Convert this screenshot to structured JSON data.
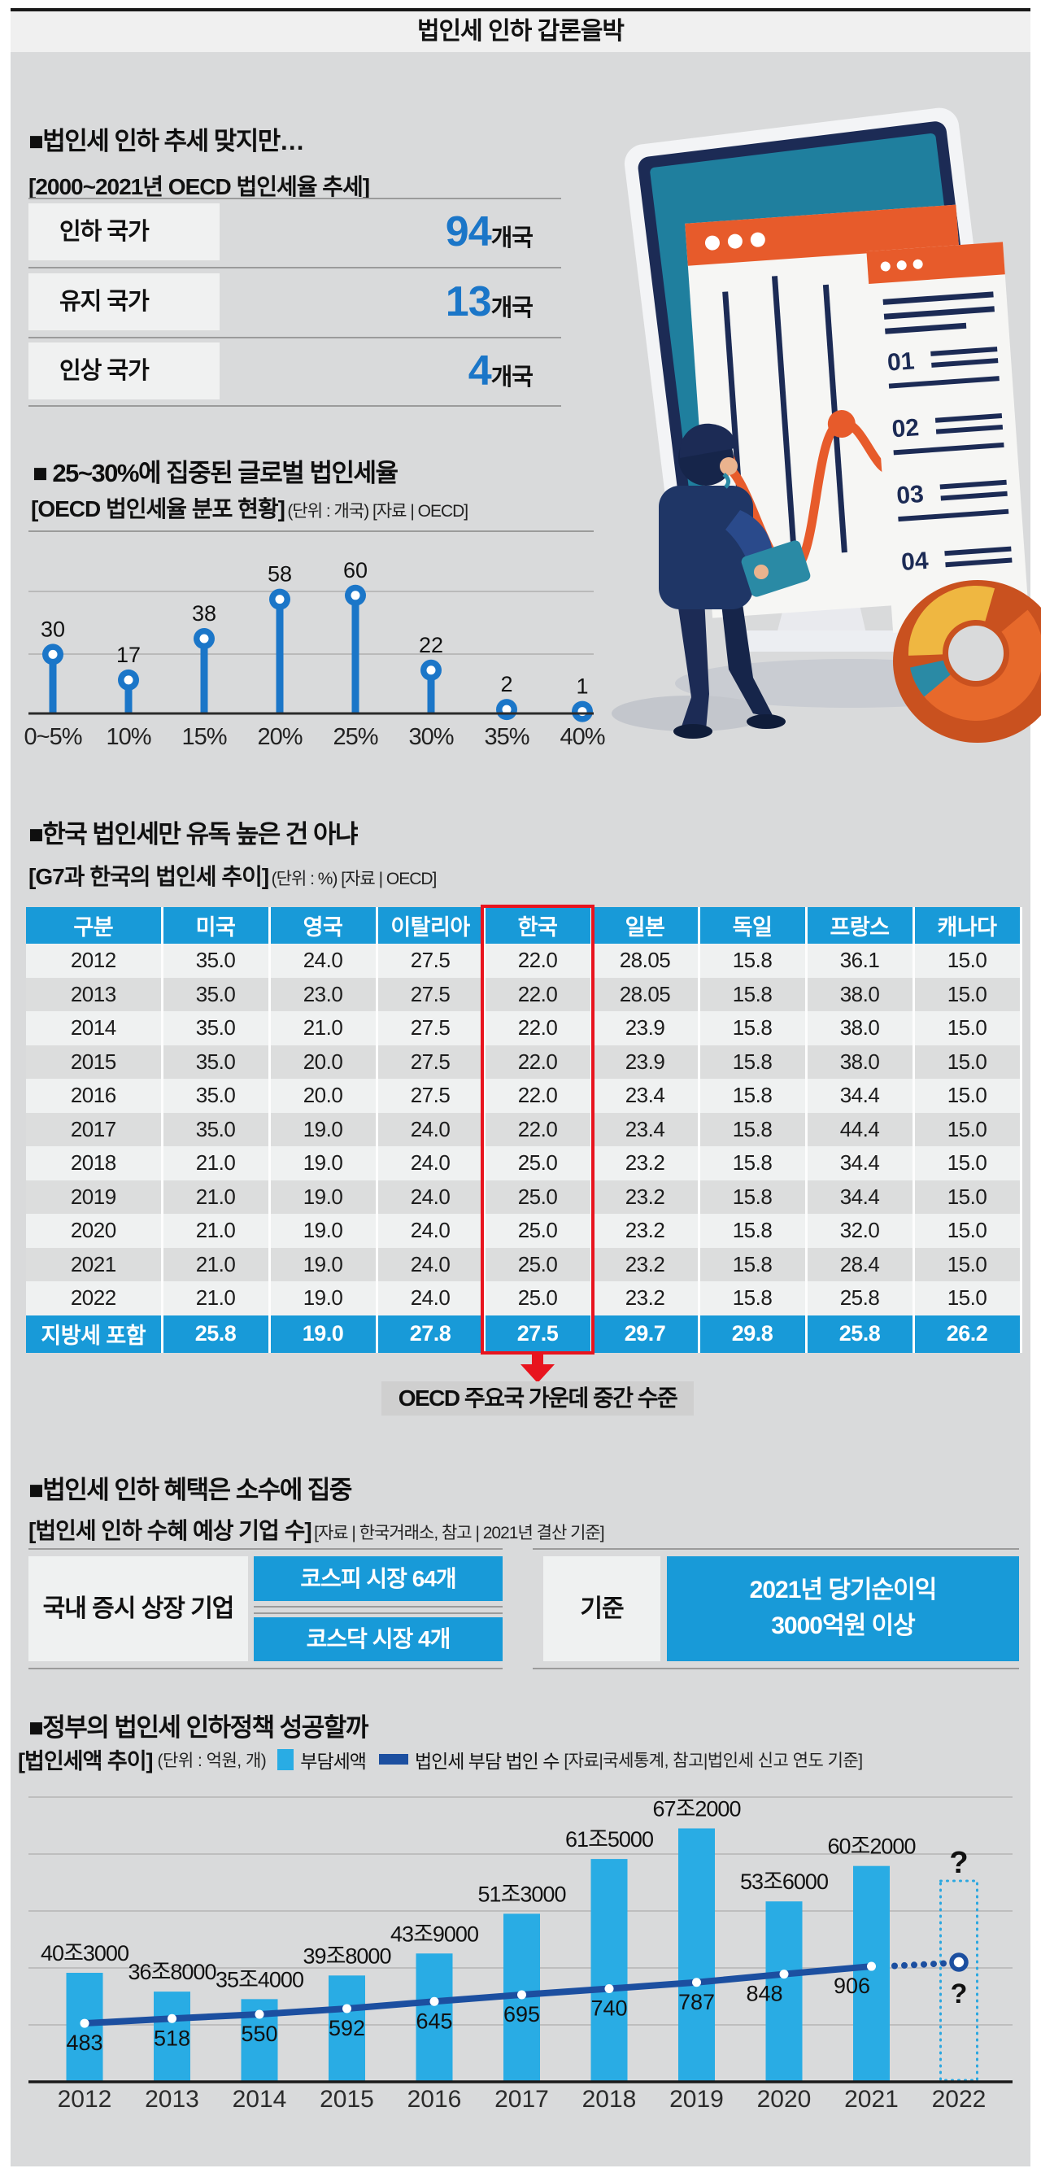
{
  "page_title": "법인세 인하 갑론을박",
  "colors": {
    "background_grey": "#d9dadb",
    "accent_blue": "#1b76c8",
    "panel_blue": "#189ad8",
    "bar_blue": "#29ace4",
    "line_navy": "#1c4fa0",
    "highlight_red": "#e8141e",
    "callout_grey": "#cfcfcf"
  },
  "section1": {
    "title": "■법인세 인하 추세 맞지만…",
    "caption": "[2000~2021년 OECD 법인세율 추세]",
    "rows": [
      {
        "label": "인하 국가",
        "value": "94",
        "unit": "개국"
      },
      {
        "label": "유지 국가",
        "value": "13",
        "unit": "개국"
      },
      {
        "label": "인상 국가",
        "value": "4",
        "unit": "개국"
      }
    ]
  },
  "section2": {
    "title": "■ 25~30%에 집중된 글로벌 법인세율",
    "caption_bold": "[OECD 법인세율 분포 현황]",
    "caption_note": "(단위 : 개국) [자료 | OECD]"
  },
  "table_section": {
    "title": "■한국 법인세만 유독 높은 건 아냐",
    "caption_bold": "[G7과 한국의 법인세 추이]",
    "caption_note": "(단위 : %) [자료 | OECD]",
    "columns": [
      "구분",
      "미국",
      "영국",
      "이탈리아",
      "한국",
      "일본",
      "독일",
      "프랑스",
      "캐나다"
    ],
    "rows": [
      [
        "2012",
        "35.0",
        "24.0",
        "27.5",
        "22.0",
        "28.05",
        "15.8",
        "36.1",
        "15.0"
      ],
      [
        "2013",
        "35.0",
        "23.0",
        "27.5",
        "22.0",
        "28.05",
        "15.8",
        "38.0",
        "15.0"
      ],
      [
        "2014",
        "35.0",
        "21.0",
        "27.5",
        "22.0",
        "23.9",
        "15.8",
        "38.0",
        "15.0"
      ],
      [
        "2015",
        "35.0",
        "20.0",
        "27.5",
        "22.0",
        "23.9",
        "15.8",
        "38.0",
        "15.0"
      ],
      [
        "2016",
        "35.0",
        "20.0",
        "27.5",
        "22.0",
        "23.4",
        "15.8",
        "34.4",
        "15.0"
      ],
      [
        "2017",
        "35.0",
        "19.0",
        "24.0",
        "22.0",
        "23.4",
        "15.8",
        "44.4",
        "15.0"
      ],
      [
        "2018",
        "21.0",
        "19.0",
        "24.0",
        "25.0",
        "23.2",
        "15.8",
        "34.4",
        "15.0"
      ],
      [
        "2019",
        "21.0",
        "19.0",
        "24.0",
        "25.0",
        "23.2",
        "15.8",
        "34.4",
        "15.0"
      ],
      [
        "2020",
        "21.0",
        "19.0",
        "24.0",
        "25.0",
        "23.2",
        "15.8",
        "32.0",
        "15.0"
      ],
      [
        "2021",
        "21.0",
        "19.0",
        "24.0",
        "25.0",
        "23.2",
        "15.8",
        "28.4",
        "15.0"
      ],
      [
        "2022",
        "21.0",
        "19.0",
        "24.0",
        "25.0",
        "23.2",
        "15.8",
        "25.8",
        "15.0"
      ]
    ],
    "footer": [
      "지방세 포함",
      "25.8",
      "19.0",
      "27.8",
      "27.5",
      "29.7",
      "29.8",
      "25.8",
      "26.2"
    ],
    "highlight_column": "한국",
    "callout": "OECD 주요국 가운데 중간 수준"
  },
  "section4": {
    "title": "■법인세 인하 혜택은 소수에 집중",
    "caption_bold": "[법인세 인하 수혜 예상 기업 수]",
    "caption_note": "[자료 | 한국거래소, 참고 | 2021년 결산 기준]",
    "left_label": "국내 증시 상장 기업",
    "kospi": "코스피 시장 64개",
    "kosdaq": "코스닥 시장 4개",
    "right_label": "기준",
    "value_line1": "2021년 당기순이익",
    "value_line2": "3000억원 이상"
  },
  "section5": {
    "title": "■정부의 법인세 인하정책 성공할까",
    "caption_bold": "[법인세액 추이]",
    "caption_note": "(단위 : 억원, 개)",
    "legend_bar": "부담세액",
    "legend_line": "법인세 부담 법인 수",
    "source": "[자료|국세통계, 참고|법인세 신고 연도 기준]"
  },
  "illustration": {
    "list_numbers": [
      "01",
      "02",
      "03",
      "04"
    ]
  },
  "chart_data": [
    {
      "type": "bar",
      "style": "lollipop",
      "title": "OECD 법인세율 분포 현황",
      "unit": "개국",
      "source": "OECD",
      "categories": [
        "0~5%",
        "10%",
        "15%",
        "20%",
        "25%",
        "30%",
        "35%",
        "40%"
      ],
      "values": [
        30,
        17,
        38,
        58,
        60,
        22,
        2,
        1
      ],
      "ylim": [
        0,
        90
      ],
      "grid": true,
      "legend_position": "none"
    },
    {
      "type": "bar",
      "style": "bar+line combo",
      "title": "법인세액 추이",
      "unit": "억원, 개",
      "categories": [
        "2012",
        "2013",
        "2014",
        "2015",
        "2016",
        "2017",
        "2018",
        "2019",
        "2020",
        "2021",
        "2022"
      ],
      "series": [
        {
          "name": "부담세액",
          "type": "bar",
          "values": [
            40.3,
            36.8,
            35.4,
            39.8,
            43.9,
            51.3,
            61.5,
            67.2,
            53.6,
            60.2,
            null
          ],
          "labels": [
            "40조3000",
            "36조8000",
            "35조4000",
            "39조8000",
            "43조9000",
            "51조3000",
            "61조5000",
            "67조2000",
            "53조6000",
            "60조2000",
            "?"
          ]
        },
        {
          "name": "법인세 부담 법인 수",
          "type": "line",
          "values": [
            483,
            518,
            550,
            592,
            645,
            695,
            740,
            787,
            848,
            906,
            null
          ],
          "labels": [
            "483",
            "518",
            "550",
            "592",
            "645",
            "695",
            "740",
            "787",
            "848",
            "906",
            "?"
          ]
        }
      ],
      "grid": true,
      "legend_position": "top"
    }
  ]
}
